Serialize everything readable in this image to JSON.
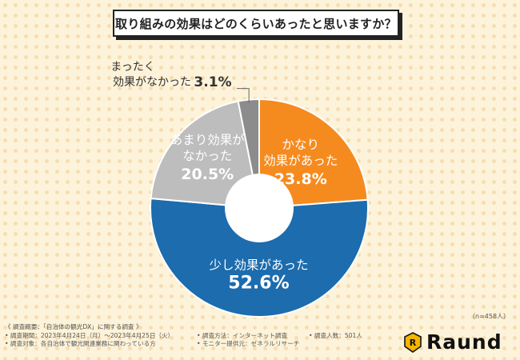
{
  "chart_data": {
    "type": "pie",
    "title": "取り組みの効果はどのくらいあったと思いますか？",
    "slices": [
      {
        "label_lines": [
          "かなり",
          "効果があった"
        ],
        "value": 23.8,
        "value_text": "23.8%",
        "color": "#f58b1f"
      },
      {
        "label_lines": [
          "少し効果があった"
        ],
        "value": 52.6,
        "value_text": "52.6%",
        "color": "#1c6cae"
      },
      {
        "label_lines": [
          "あまり効果が",
          "なかった"
        ],
        "value": 20.5,
        "value_text": "20.5%",
        "color": "#bdbdbd"
      },
      {
        "label_lines": [
          "まったく",
          "効果がなかった"
        ],
        "value": 3.1,
        "value_text": "3.1%",
        "color": "#8c8c8c"
      }
    ]
  },
  "note": "（n=458人）",
  "footer": {
    "line1": "《 調査概要：「自治体の観光DX」に関する調査 》",
    "period": "• 調査期間：2023年4月24日（月）～2023年4月25日（火）",
    "method": "• 調査方法：インターネット調査",
    "count": "• 調査人数：501人",
    "target": "• 調査対象：各自治体で観光関連業務に関わっている方",
    "provider": "• モニター提供元：ゼネラルリサーチ"
  },
  "brand": {
    "name": "Raund",
    "color": "#f5b400"
  }
}
